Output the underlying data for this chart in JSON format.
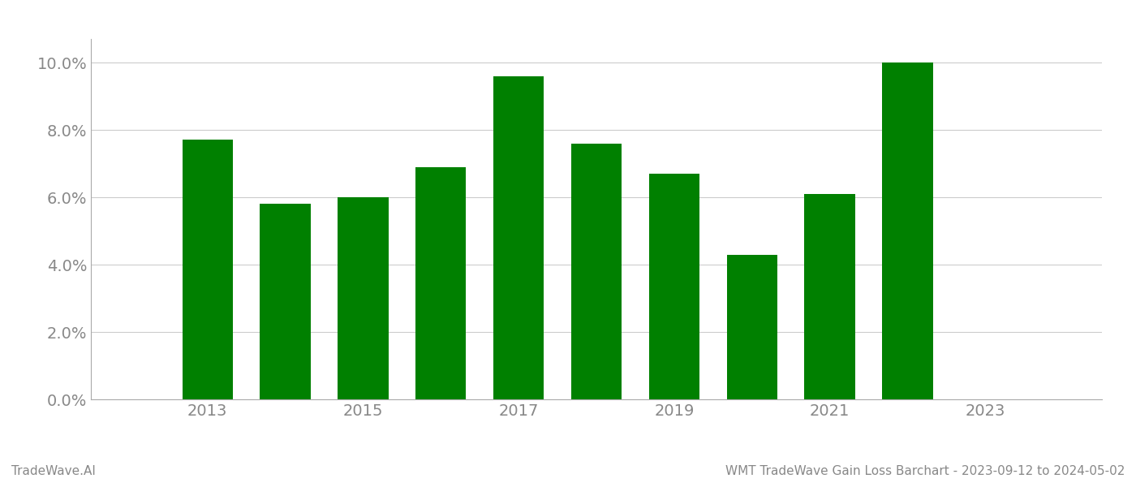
{
  "years": [
    2013,
    2014,
    2015,
    2016,
    2017,
    2018,
    2019,
    2020,
    2021,
    2022
  ],
  "values": [
    0.077,
    0.058,
    0.06,
    0.069,
    0.096,
    0.076,
    0.067,
    0.043,
    0.061,
    0.1
  ],
  "bar_color": "#008000",
  "ylim": [
    0,
    0.107
  ],
  "yticks": [
    0.0,
    0.02,
    0.04,
    0.06,
    0.08,
    0.1
  ],
  "xticks": [
    2013,
    2015,
    2017,
    2019,
    2021,
    2023
  ],
  "footer_left": "TradeWave.AI",
  "footer_right": "WMT TradeWave Gain Loss Barchart - 2023-09-12 to 2024-05-02",
  "background_color": "#ffffff",
  "grid_color": "#cccccc",
  "tick_color": "#888888",
  "bar_width": 0.65
}
